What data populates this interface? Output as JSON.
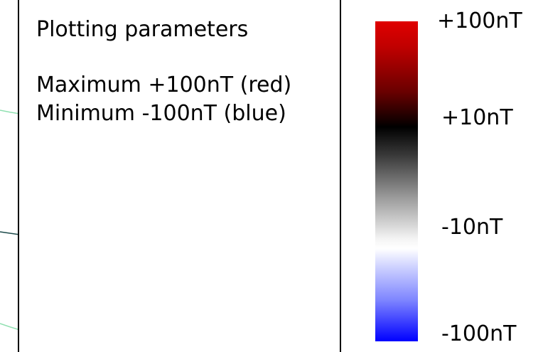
{
  "parameters_panel": {
    "title": "Plotting parameters",
    "maximum_text": "Maximum +100nT (red)",
    "minimum_text": "Minimum -100nT (blue)"
  },
  "color_scale": {
    "tick_labels": [
      "+100nT",
      "+10nT",
      "-10nT",
      "-100nT"
    ],
    "top_color": "#e00000",
    "middle_color": "#000000",
    "bottom_color": "#0000ff"
  }
}
